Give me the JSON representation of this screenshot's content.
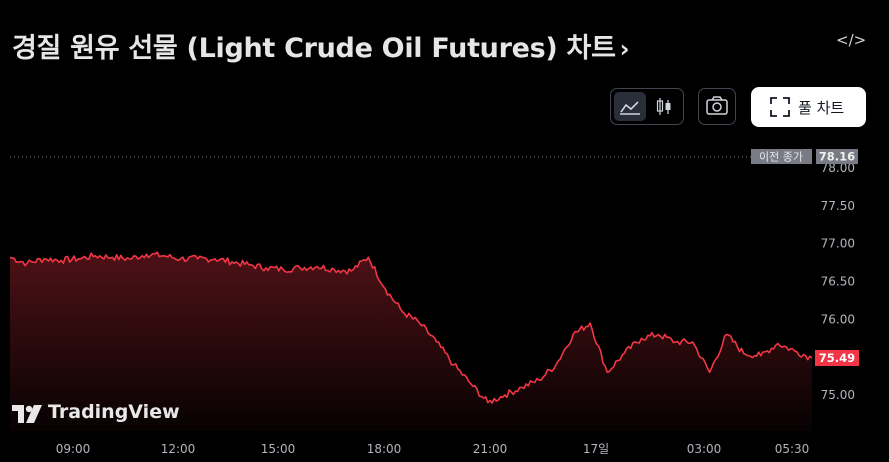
{
  "header": {
    "title": "경질 원유 선물 (Light Crude Oil Futures) 차트",
    "title_chevron": "›",
    "embed_icon": "code-icon",
    "embed_glyph": "</>"
  },
  "toolbar": {
    "line_chart_icon": "line-chart-icon",
    "candle_chart_icon": "candlestick-icon",
    "camera_icon": "camera-icon",
    "fullscreen_label": "풀 차트",
    "fullscreen_icon": "fullscreen-icon"
  },
  "branding": {
    "logo_text": "TradingView"
  },
  "colors": {
    "line": "#f23645",
    "prev_close_bg": "#787b86",
    "last_price_bg": "#f23645",
    "background": "#000000"
  },
  "chart_data": {
    "type": "area",
    "x_ticks": [
      "09:00",
      "12:00",
      "15:00",
      "18:00",
      "21:00",
      "17일",
      "03:00",
      "05:30"
    ],
    "y_ticks": [
      "78.00",
      "77.50",
      "77.00",
      "76.50",
      "76.00",
      "75.00"
    ],
    "ylim": [
      74.55,
      78.2
    ],
    "previous_close": {
      "label": "이전 종가",
      "value": "78.16"
    },
    "last_price": {
      "value": "75.49"
    },
    "series": [
      {
        "x": [
          "06:30",
          "07:00",
          "07:30",
          "08:00",
          "08:30",
          "09:00",
          "09:30",
          "10:00",
          "10:30",
          "11:00",
          "11:30",
          "12:00",
          "12:30",
          "13:00",
          "13:30",
          "14:00",
          "14:30",
          "15:00",
          "15:30",
          "16:00",
          "16:30",
          "17:00",
          "17:30",
          "18:00",
          "18:30",
          "19:00",
          "19:30",
          "20:00",
          "20:30",
          "21:00",
          "21:30",
          "22:00",
          "22:30",
          "23:00",
          "23:30",
          "00:00",
          "00:30",
          "01:00",
          "01:30",
          "02:00",
          "02:30",
          "03:00",
          "03:30",
          "04:00",
          "04:30",
          "05:00",
          "05:30",
          "05:50"
        ],
        "values": [
          76.82,
          76.74,
          76.8,
          76.78,
          76.8,
          76.84,
          76.82,
          76.8,
          76.86,
          76.84,
          76.8,
          76.8,
          76.8,
          76.76,
          76.72,
          76.68,
          76.66,
          76.68,
          76.7,
          76.66,
          76.64,
          76.82,
          76.4,
          76.1,
          75.95,
          75.7,
          75.4,
          75.15,
          74.9,
          75.0,
          75.1,
          75.2,
          75.4,
          75.8,
          75.95,
          75.3,
          75.55,
          75.75,
          75.8,
          75.7,
          75.7,
          75.3,
          75.8,
          75.55,
          75.52,
          75.68,
          75.58,
          75.49
        ]
      }
    ]
  }
}
